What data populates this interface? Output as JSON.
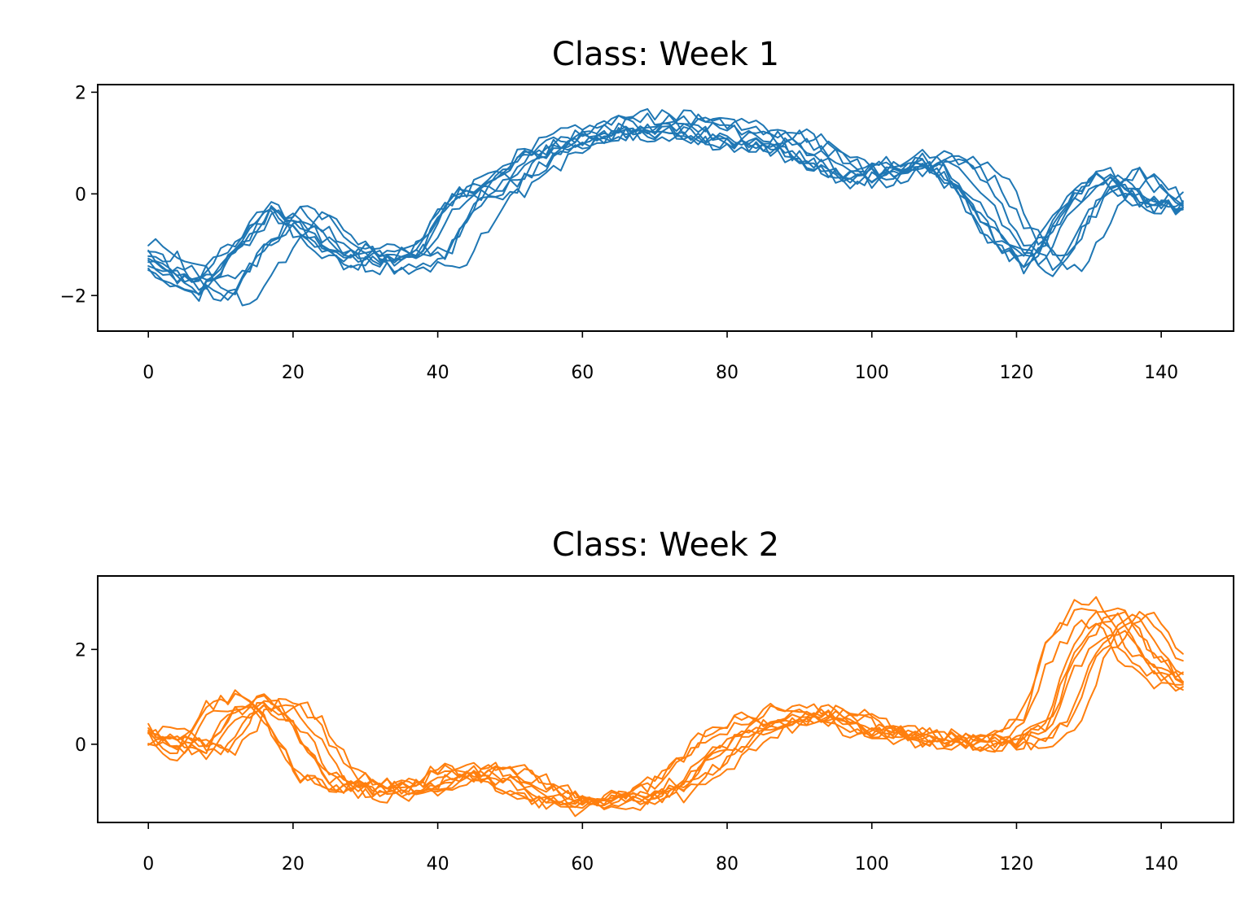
{
  "chart_data": [
    {
      "type": "line",
      "title": "Class: Week 1",
      "xlabel": "",
      "ylabel": "",
      "xlim": [
        -7,
        150
      ],
      "ylim": [
        -2.7,
        2.15
      ],
      "xticks": [
        0,
        20,
        40,
        60,
        80,
        100,
        120,
        140
      ],
      "yticks": [
        -2,
        0,
        2
      ],
      "ytick_labels": [
        "−2",
        "0",
        "2"
      ],
      "grid": false,
      "color": "#1f77b4",
      "series_count": 10,
      "x_range": [
        0,
        143
      ],
      "approx_profile": {
        "x": [
          0,
          5,
          10,
          20,
          30,
          40,
          45,
          50,
          55,
          60,
          70,
          80,
          90,
          100,
          110,
          115,
          120,
          125,
          130,
          135,
          140,
          143
        ],
        "y": [
          -1.1,
          -1.6,
          -1.9,
          -0.3,
          -1.3,
          -1.2,
          -0.1,
          0.2,
          0.8,
          1.1,
          1.4,
          1.2,
          1.0,
          0.3,
          0.7,
          0.2,
          -0.9,
          -1.4,
          -0.2,
          0.4,
          -0.1,
          -0.2
        ]
      }
    },
    {
      "type": "line",
      "title": "Class: Week 2",
      "xlabel": "",
      "ylabel": "",
      "xlim": [
        -7,
        150
      ],
      "ylim": [
        -1.65,
        3.55
      ],
      "xticks": [
        0,
        20,
        40,
        60,
        80,
        100,
        120,
        140
      ],
      "yticks": [
        0,
        2
      ],
      "ytick_labels": [
        "0",
        "2"
      ],
      "grid": false,
      "color": "#ff7f0e",
      "series_count": 10,
      "x_range": [
        0,
        143
      ],
      "approx_profile": {
        "x": [
          0,
          5,
          8,
          12,
          17,
          20,
          25,
          30,
          35,
          40,
          45,
          50,
          55,
          60,
          65,
          70,
          75,
          80,
          85,
          90,
          95,
          100,
          110,
          120,
          125,
          128,
          132,
          135,
          138,
          143
        ],
        "y": [
          0.2,
          0.0,
          -0.2,
          0.7,
          0.9,
          0.5,
          -0.7,
          -0.9,
          -1.0,
          -0.9,
          -0.5,
          -0.7,
          -1.1,
          -1.25,
          -1.2,
          -1.1,
          -0.7,
          0.0,
          0.4,
          0.6,
          0.65,
          0.3,
          0.1,
          0.0,
          0.5,
          1.8,
          2.6,
          2.8,
          2.0,
          1.3
        ]
      }
    }
  ]
}
